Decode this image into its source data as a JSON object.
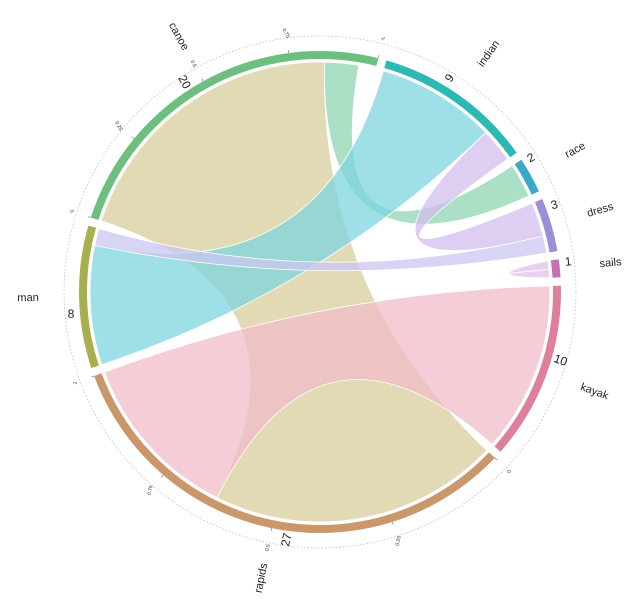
{
  "chart_data": {
    "type": "chord",
    "sectors": [
      {
        "name": "canoe",
        "value": 20,
        "color": "#6cbf7f"
      },
      {
        "name": "indian",
        "value": 9,
        "color": "#2cb8b4"
      },
      {
        "name": "race",
        "value": 2,
        "color": "#39a9c9"
      },
      {
        "name": "dress",
        "value": 3,
        "color": "#9b8fd8"
      },
      {
        "name": "sails",
        "value": 1,
        "color": "#c771b4"
      },
      {
        "name": "kayak",
        "value": 10,
        "color": "#df809b"
      },
      {
        "name": "rapids",
        "value": 27,
        "color": "#c9976a"
      },
      {
        "name": "man",
        "value": 8,
        "color": "#a6b04c"
      }
    ],
    "chords": [
      {
        "from": "canoe",
        "to": "rapids",
        "value": 17,
        "color": "#d8cd9c"
      },
      {
        "from": "canoe",
        "to": "race",
        "value": 2,
        "color": "#8fd6b4"
      },
      {
        "from": "indian",
        "to": "man",
        "value": 7,
        "color": "#7fd4df"
      },
      {
        "from": "indian",
        "to": "dress",
        "value": 2,
        "color": "#d3bdee"
      },
      {
        "from": "dress",
        "to": "man",
        "value": 1,
        "color": "#c9c6f2"
      },
      {
        "from": "sails",
        "to": "sails",
        "value": 1,
        "color": "#e2c0ea"
      },
      {
        "from": "kayak",
        "to": "rapids",
        "value": 10,
        "color": "#f0bcc8"
      }
    ],
    "scale_ticks": [
      0,
      0.25,
      0.5,
      0.75,
      1
    ]
  }
}
